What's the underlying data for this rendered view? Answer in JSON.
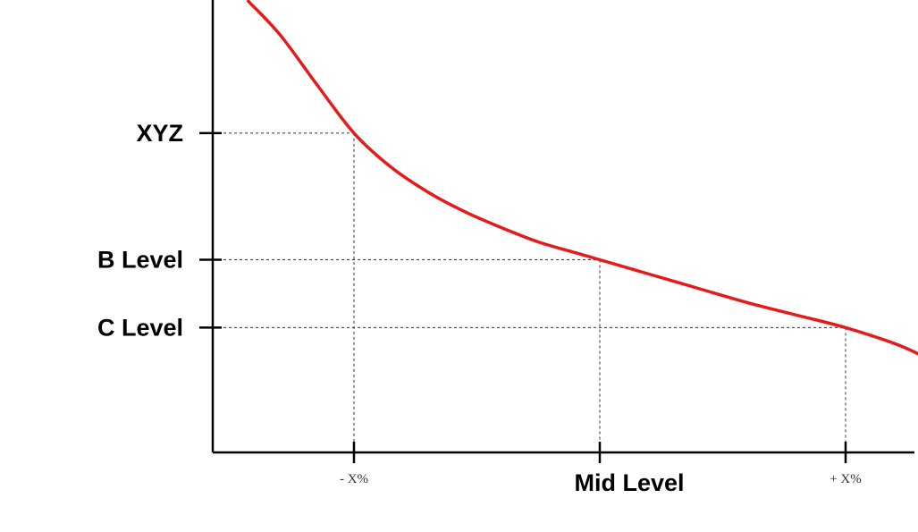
{
  "chart_data": {
    "type": "line",
    "title": "",
    "xlabel": "",
    "ylabel": "",
    "grid": false,
    "legend": "none",
    "xlim": [
      -0.6,
      2.4
    ],
    "ylim": [
      0,
      26
    ],
    "x_ticks": [
      {
        "x": 0,
        "label": "- X%",
        "style": "small"
      },
      {
        "x": 1,
        "label": "Mid Level",
        "style": "big"
      },
      {
        "x": 2,
        "label": "+ X%",
        "style": "small"
      }
    ],
    "y_ticks": [
      {
        "y": 17.9,
        "label": "XYZ"
      },
      {
        "y": 10.8,
        "label": "B Level"
      },
      {
        "y": 7.0,
        "label": "C Level"
      }
    ],
    "reference_points": [
      {
        "x": 0,
        "y": 17.9
      },
      {
        "x": 1,
        "y": 10.8
      },
      {
        "x": 2,
        "y": 7.0
      }
    ],
    "series": [
      {
        "color": "#e31b1b",
        "x": [
          -0.43,
          -0.3,
          -0.15,
          0,
          0.15,
          0.3,
          0.45,
          0.6,
          0.75,
          0.9,
          1.0,
          1.2,
          1.4,
          1.6,
          1.8,
          2.0,
          2.2,
          2.3
        ],
        "y": [
          25.3,
          23.4,
          20.6,
          17.9,
          16.0,
          14.6,
          13.5,
          12.6,
          11.8,
          11.2,
          10.8,
          10.0,
          9.2,
          8.4,
          7.7,
          7.0,
          6.1,
          5.5
        ]
      }
    ]
  }
}
